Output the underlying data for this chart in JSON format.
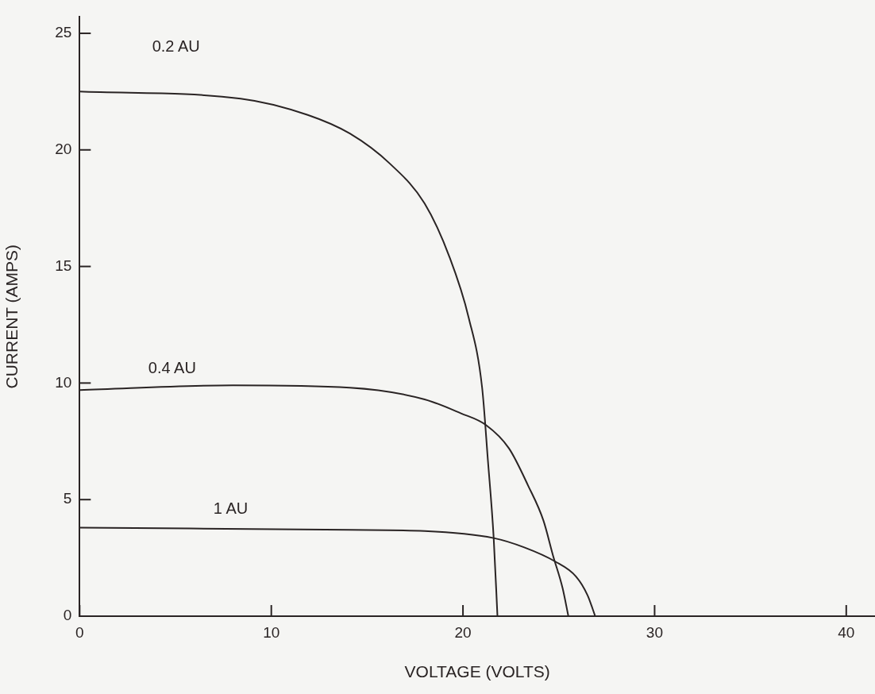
{
  "chart_data": {
    "type": "line",
    "xlabel": "VOLTAGE (VOLTS)",
    "ylabel": "CURRENT (AMPS)",
    "xlim": [
      0,
      41.5
    ],
    "xticks": [
      0,
      10,
      20,
      30,
      40
    ],
    "ylim": [
      0,
      25.7
    ],
    "yticks": [
      0,
      5,
      10,
      15,
      20,
      25
    ],
    "grid": false,
    "legend": false,
    "marker": "none",
    "line_style": "solid",
    "series": [
      {
        "name": "0.2 AU",
        "color": "#2a2424",
        "x": [
          0,
          8.4,
          11.9,
          14.1,
          16.2,
          18.0,
          19.3,
          20.3,
          21.0,
          21.3,
          21.6,
          21.8
        ],
        "values": [
          22.5,
          22.2,
          21.5,
          20.7,
          19.4,
          17.7,
          15.4,
          12.8,
          9.8,
          6.7,
          3.4,
          0
        ]
      },
      {
        "name": "0.4 AU",
        "color": "#2a2424",
        "x": [
          0,
          8,
          14.1,
          18.0,
          19.9,
          21.2,
          22.4,
          23.4,
          24.2,
          24.7,
          25.2,
          25.5
        ],
        "values": [
          9.7,
          9.9,
          9.8,
          9.3,
          8.7,
          8.2,
          7.2,
          5.6,
          4.1,
          2.6,
          1.2,
          0
        ]
      },
      {
        "name": "1 AU",
        "color": "#2a2424",
        "x": [
          0,
          14.1,
          18.0,
          21.6,
          23.2,
          24.8,
          25.9,
          26.5,
          26.9
        ],
        "values": [
          3.8,
          3.7,
          3.65,
          3.35,
          2.95,
          2.35,
          1.7,
          0.9,
          0
        ]
      }
    ]
  }
}
